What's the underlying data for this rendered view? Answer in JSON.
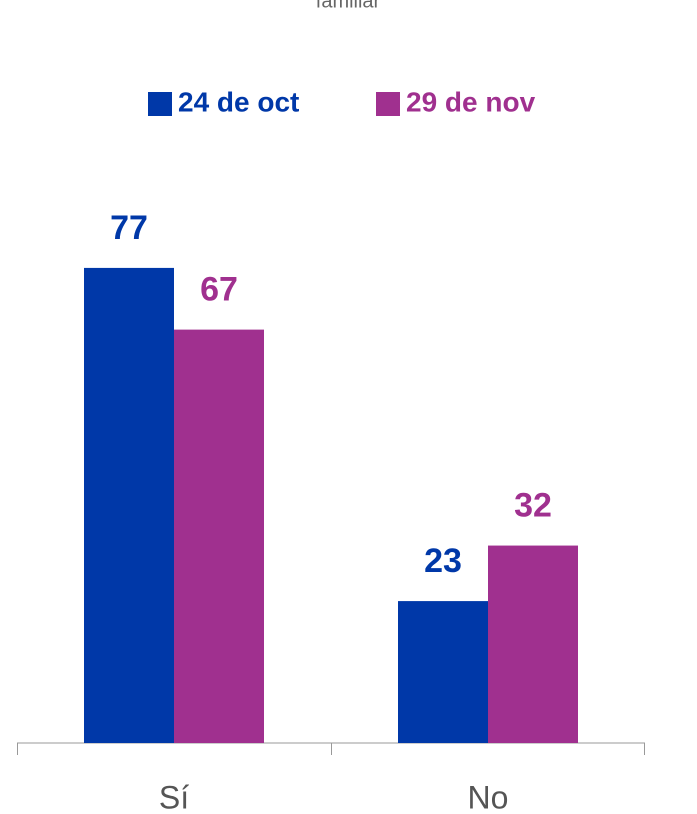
{
  "chart_data": {
    "type": "bar",
    "title": "familiar",
    "categories": [
      "Sí",
      "No"
    ],
    "series": [
      {
        "name": "24 de oct",
        "color": "#0038a8",
        "values": [
          77,
          23
        ]
      },
      {
        "name": "29 de nov",
        "color": "#a0308f",
        "values": [
          67,
          32
        ]
      }
    ],
    "legend": "top"
  }
}
